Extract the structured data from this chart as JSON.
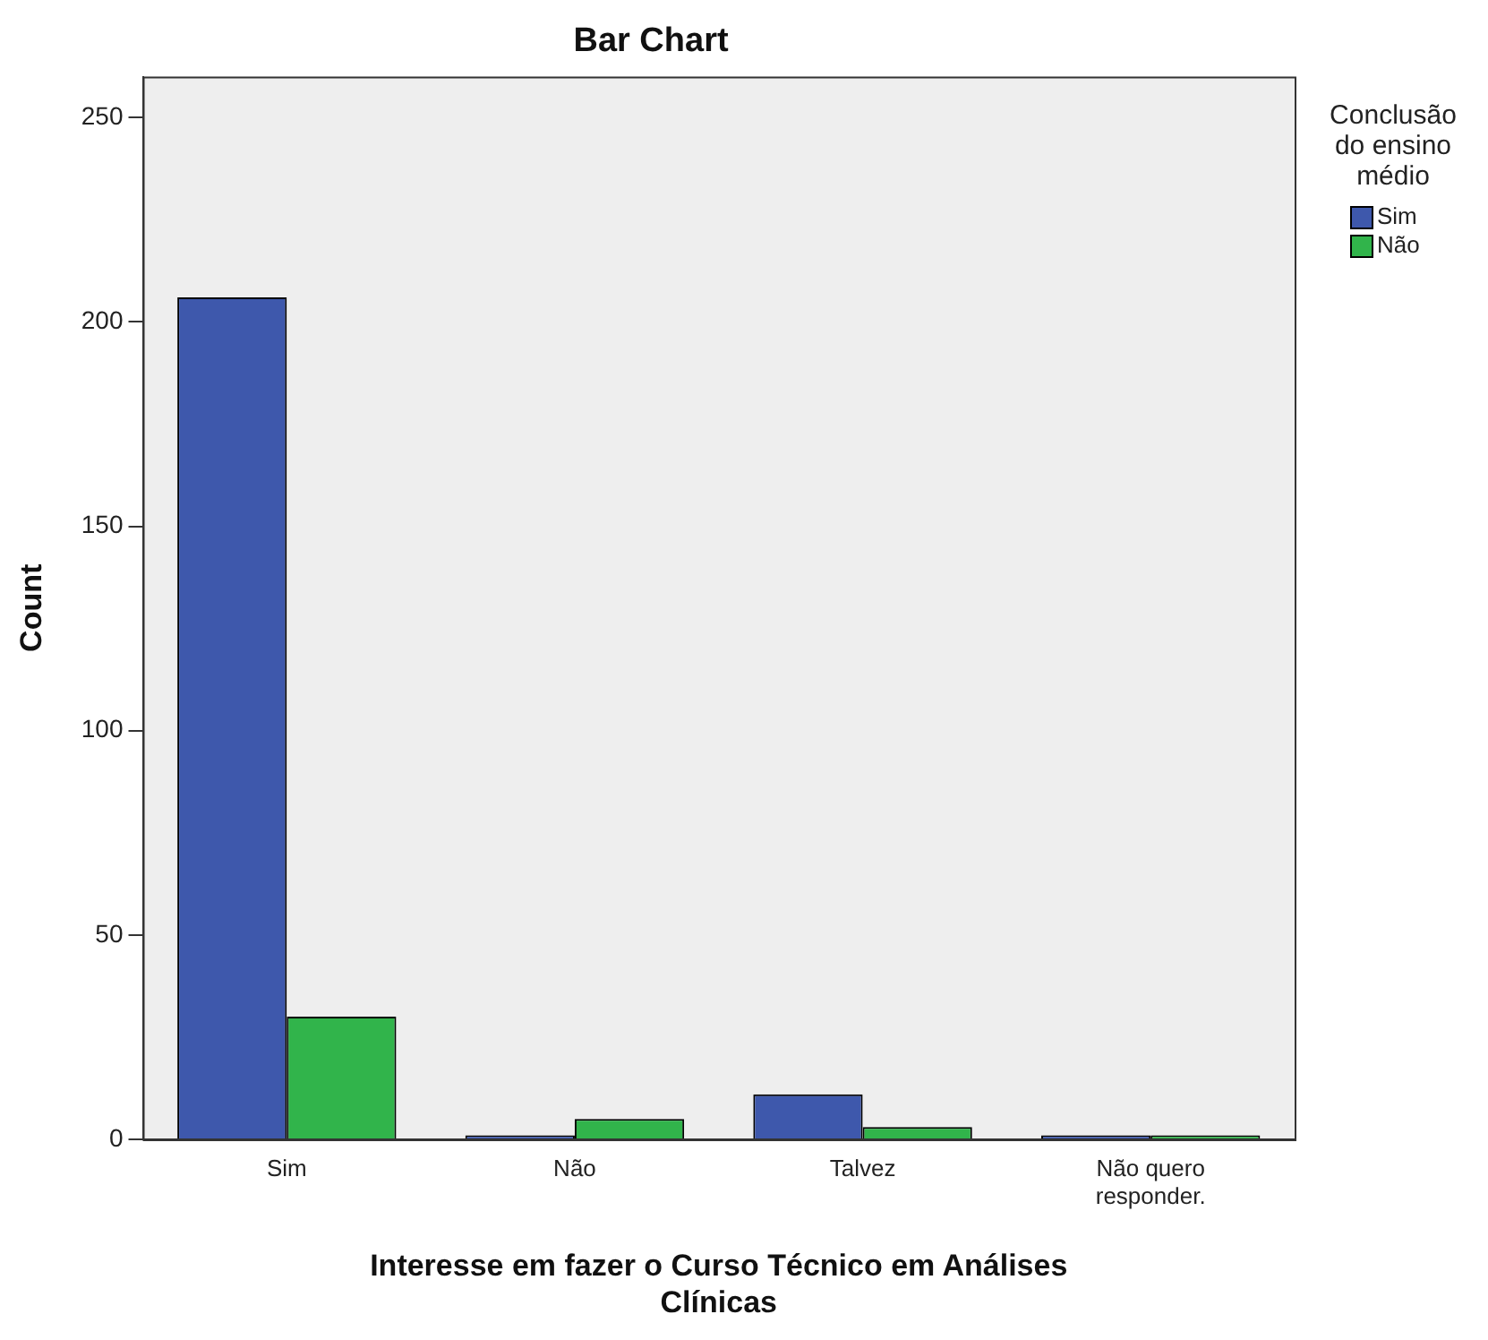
{
  "chart_data": {
    "type": "bar",
    "title": "Bar Chart",
    "xlabel": "Interesse em fazer o Curso Técnico em Análises Clínicas",
    "ylabel": "Count",
    "legend_title": "Conclusão do ensino médio",
    "categories": [
      "Sim",
      "Não",
      "Talvez",
      "Não quero responder."
    ],
    "series": [
      {
        "name": "Sim",
        "color": "#3e58ac",
        "values": [
          206,
          1,
          11,
          1
        ]
      },
      {
        "name": "Não",
        "color": "#31b44b",
        "values": [
          30,
          5,
          3,
          1
        ]
      }
    ],
    "ylim": [
      0,
      260
    ],
    "yticks": [
      0,
      50,
      100,
      150,
      200,
      250
    ],
    "grid": false,
    "legend": "top right"
  }
}
